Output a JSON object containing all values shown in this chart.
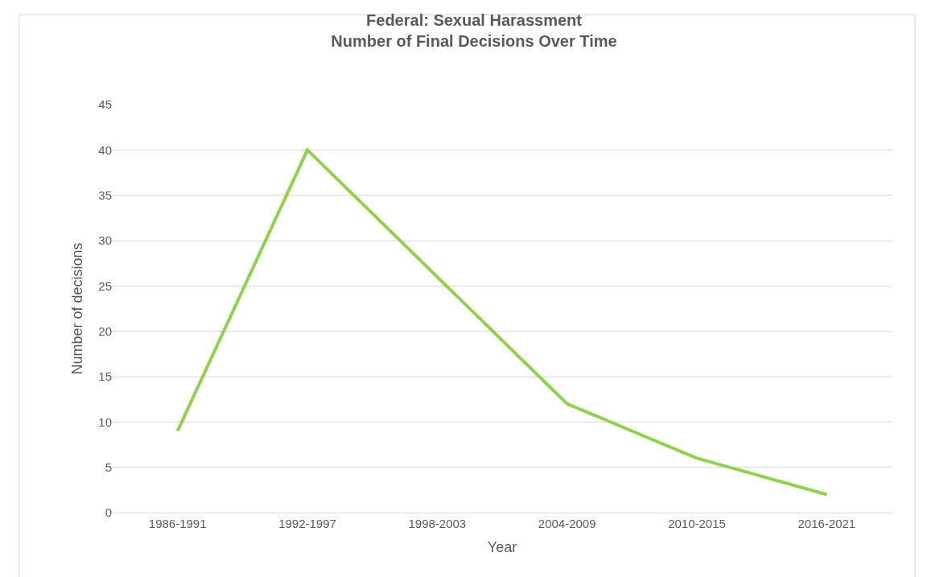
{
  "chart_data": {
    "type": "line",
    "title": "Federal: Sexual Harassment\nNumber of Final Decisions Over Time",
    "xlabel": "Year",
    "ylabel": "Number of decisions",
    "categories": [
      "1986-1991",
      "1992-1997",
      "1998-2003",
      "2004-2009",
      "2010-2015",
      "2016-2021"
    ],
    "series": [
      {
        "color": "#92d050",
        "values": [
          9,
          40,
          26,
          12,
          6,
          2
        ]
      }
    ],
    "ylim": [
      0,
      45
    ],
    "yticks": [
      0,
      5,
      10,
      15,
      20,
      25,
      30,
      35,
      40,
      45
    ],
    "grid": "y",
    "marker": "none",
    "line_style": "solid"
  }
}
